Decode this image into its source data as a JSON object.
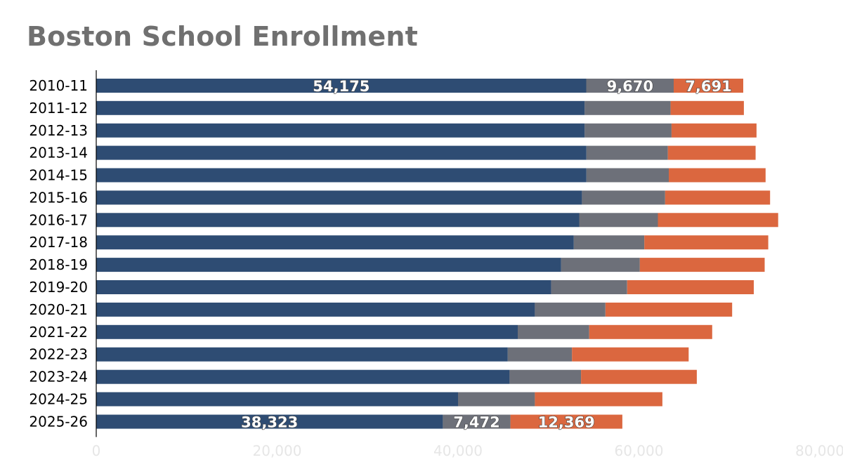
{
  "chart_data": {
    "type": "bar",
    "orientation": "horizontal",
    "stacked": true,
    "title": "Boston School Enrollment",
    "xlabel": "",
    "ylabel": "",
    "xlim": [
      0,
      80000
    ],
    "x_ticks": [
      0,
      20000,
      40000,
      60000,
      80000
    ],
    "x_tick_labels": [
      "0",
      "20,000",
      "40,000",
      "60,000",
      "80,000"
    ],
    "grid": false,
    "legend": "none",
    "categories": [
      "2010-11",
      "2011-12",
      "2012-13",
      "2013-14",
      "2014-15",
      "2015-16",
      "2016-17",
      "2017-18",
      "2018-19",
      "2019-20",
      "2020-21",
      "2021-22",
      "2022-23",
      "2023-24",
      "2024-25",
      "2025-26"
    ],
    "series": [
      {
        "color": "#2e4c73",
        "values": [
          54175,
          54000,
          54000,
          54200,
          54200,
          53700,
          53400,
          52800,
          51400,
          50300,
          48500,
          46600,
          45500,
          45700,
          40000,
          38323
        ]
      },
      {
        "color": "#6d7079",
        "values": [
          9670,
          9500,
          9600,
          9000,
          9100,
          9200,
          8700,
          7800,
          8700,
          8400,
          7800,
          7900,
          7100,
          7900,
          8500,
          7472
        ]
      },
      {
        "color": "#db673f",
        "values": [
          7691,
          8100,
          9400,
          9700,
          10700,
          11600,
          13300,
          13700,
          13800,
          14000,
          14000,
          13600,
          12900,
          12800,
          14100,
          12369
        ]
      }
    ],
    "data_labels": [
      {
        "category_index": 0,
        "series_index": 0,
        "text": "54,175"
      },
      {
        "category_index": 0,
        "series_index": 1,
        "text": "9,670"
      },
      {
        "category_index": 0,
        "series_index": 2,
        "text": "7,691"
      },
      {
        "category_index": 15,
        "series_index": 0,
        "text": "38,323"
      },
      {
        "category_index": 15,
        "series_index": 1,
        "text": "7,472"
      },
      {
        "category_index": 15,
        "series_index": 2,
        "text": "12,369"
      }
    ]
  }
}
